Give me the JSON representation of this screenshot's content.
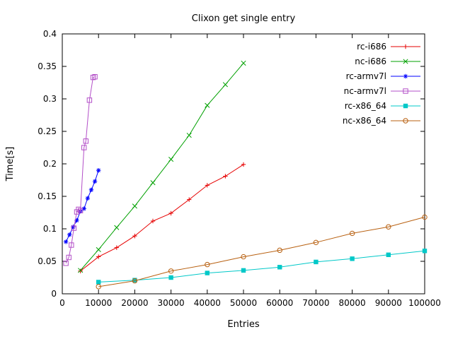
{
  "figure": {
    "background": "#ffffff",
    "axis_color": "#000000",
    "text_color": "#000000"
  },
  "chart_data": {
    "type": "line",
    "title": "Clixon get single entry",
    "xlabel": "Entries",
    "ylabel": "Time[s]",
    "xlim": [
      0,
      100000
    ],
    "ylim": [
      0,
      0.4
    ],
    "grid": false,
    "legend_position": "top-right-inside",
    "xticks": {
      "values": [
        0,
        10000,
        20000,
        30000,
        40000,
        50000,
        60000,
        70000,
        80000,
        90000,
        100000
      ],
      "labels": [
        "0",
        "10000",
        "20000",
        "30000",
        "40000",
        "50000",
        "60000",
        "70000",
        "80000",
        "90000",
        "100000"
      ]
    },
    "yticks": {
      "values": [
        0,
        0.05,
        0.1,
        0.15,
        0.2,
        0.25,
        0.3,
        0.35,
        0.4
      ],
      "labels": [
        "0",
        "0.05",
        "0.1",
        "0.15",
        "0.2",
        "0.25",
        "0.3",
        "0.35",
        "0.4"
      ]
    },
    "series": [
      {
        "name": "rc-i686",
        "color": "#e60000",
        "marker": "plus",
        "points": [
          [
            5000,
            0.035
          ],
          [
            10000,
            0.057
          ],
          [
            15000,
            0.071
          ],
          [
            20000,
            0.089
          ],
          [
            25000,
            0.112
          ],
          [
            30000,
            0.124
          ],
          [
            35000,
            0.145
          ],
          [
            40000,
            0.167
          ],
          [
            45000,
            0.181
          ],
          [
            50000,
            0.199
          ]
        ]
      },
      {
        "name": "nc-i686",
        "color": "#00a000",
        "marker": "cross",
        "points": [
          [
            5000,
            0.036
          ],
          [
            10000,
            0.068
          ],
          [
            15000,
            0.102
          ],
          [
            20000,
            0.135
          ],
          [
            25000,
            0.171
          ],
          [
            30000,
            0.207
          ],
          [
            35000,
            0.244
          ],
          [
            40000,
            0.29
          ],
          [
            45000,
            0.322
          ],
          [
            50000,
            0.355
          ]
        ]
      },
      {
        "name": "rc-armv7l",
        "color": "#0000ff",
        "marker": "asterisk",
        "points": [
          [
            1000,
            0.08
          ],
          [
            2000,
            0.091
          ],
          [
            3000,
            0.103
          ],
          [
            4000,
            0.113
          ],
          [
            5000,
            0.127
          ],
          [
            6000,
            0.131
          ],
          [
            7000,
            0.147
          ],
          [
            8000,
            0.16
          ],
          [
            9000,
            0.173
          ],
          [
            10000,
            0.19
          ]
        ]
      },
      {
        "name": "nc-armv7l",
        "color": "#b34fc8",
        "marker": "square-open",
        "points": [
          [
            1000,
            0.047
          ],
          [
            1800,
            0.056
          ],
          [
            2500,
            0.075
          ],
          [
            3200,
            0.101
          ],
          [
            4000,
            0.126
          ],
          [
            4500,
            0.13
          ],
          [
            5000,
            0.128
          ],
          [
            6000,
            0.225
          ],
          [
            6500,
            0.235
          ],
          [
            7500,
            0.298
          ],
          [
            8500,
            0.333
          ],
          [
            9000,
            0.334
          ]
        ]
      },
      {
        "name": "rc-x86_64",
        "color": "#00c8c8",
        "marker": "square-filled",
        "points": [
          [
            10000,
            0.018
          ],
          [
            20000,
            0.021
          ],
          [
            30000,
            0.025
          ],
          [
            40000,
            0.032
          ],
          [
            50000,
            0.036
          ],
          [
            60000,
            0.041
          ],
          [
            70000,
            0.049
          ],
          [
            80000,
            0.054
          ],
          [
            90000,
            0.06
          ],
          [
            100000,
            0.066
          ]
        ]
      },
      {
        "name": "nc-x86_64",
        "color": "#b86010",
        "marker": "circle-open",
        "points": [
          [
            10000,
            0.011
          ],
          [
            20000,
            0.02
          ],
          [
            30000,
            0.035
          ],
          [
            40000,
            0.045
          ],
          [
            50000,
            0.057
          ],
          [
            60000,
            0.067
          ],
          [
            70000,
            0.079
          ],
          [
            80000,
            0.093
          ],
          [
            90000,
            0.103
          ],
          [
            100000,
            0.118
          ]
        ]
      }
    ]
  }
}
